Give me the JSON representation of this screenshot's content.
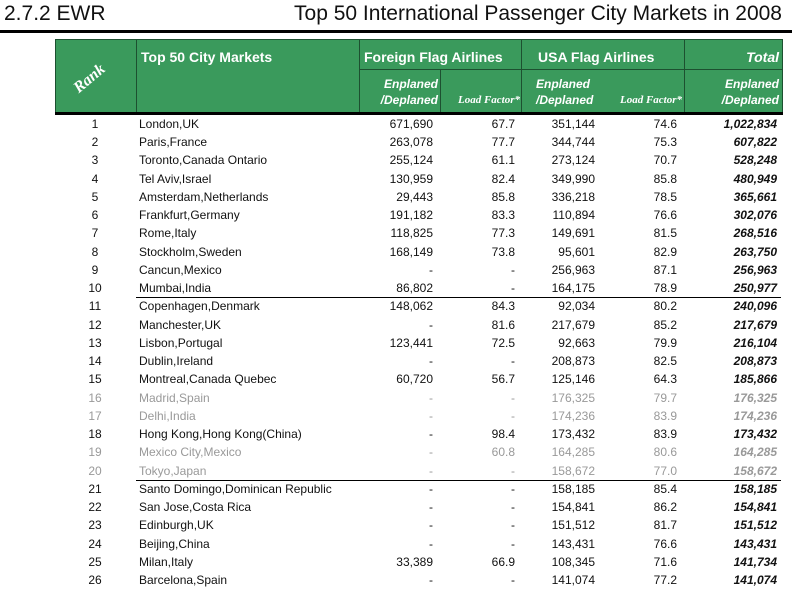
{
  "section": "2.7.2 EWR",
  "title": "Top 50 International Passenger City Markets in 2008",
  "header": {
    "rank": "Rank",
    "city": "Top 50 City Markets",
    "foreign": "Foreign Flag Airlines",
    "usa": "USA Flag Airlines",
    "total": "Total",
    "enplaned": "Enplaned",
    "deplaned": "/Deplaned",
    "load_factor": "Load Factor*",
    "header_color": "#3a9a5c"
  },
  "rows": [
    [
      "1",
      "London,UK",
      "671,690",
      "67.7",
      "351,144",
      "74.6",
      "1,022,834"
    ],
    [
      "2",
      "Paris,France",
      "263,078",
      "77.7",
      "344,744",
      "75.3",
      "607,822"
    ],
    [
      "3",
      "Toronto,Canada Ontario",
      "255,124",
      "61.1",
      "273,124",
      "70.7",
      "528,248"
    ],
    [
      "4",
      "Tel Aviv,Israel",
      "130,959",
      "82.4",
      "349,990",
      "85.8",
      "480,949"
    ],
    [
      "5",
      "Amsterdam,Netherlands",
      "29,443",
      "85.8",
      "336,218",
      "78.5",
      "365,661"
    ],
    [
      "6",
      "Frankfurt,Germany",
      "191,182",
      "83.3",
      "110,894",
      "76.6",
      "302,076"
    ],
    [
      "7",
      "Rome,Italy",
      "118,825",
      "77.3",
      "149,691",
      "81.5",
      "268,516"
    ],
    [
      "8",
      "Stockholm,Sweden",
      "168,149",
      "73.8",
      "95,601",
      "82.9",
      "263,750"
    ],
    [
      "9",
      "Cancun,Mexico",
      "-",
      "-",
      "256,963",
      "87.1",
      "256,963"
    ],
    [
      "10",
      "Mumbai,India",
      "86,802",
      "-",
      "164,175",
      "78.9",
      "250,977"
    ],
    [
      "11",
      "Copenhagen,Denmark",
      "148,062",
      "84.3",
      "92,034",
      "80.2",
      "240,096"
    ],
    [
      "12",
      "Manchester,UK",
      "-",
      "81.6",
      "217,679",
      "85.2",
      "217,679"
    ],
    [
      "13",
      "Lisbon,Portugal",
      "123,441",
      "72.5",
      "92,663",
      "79.9",
      "216,104"
    ],
    [
      "14",
      "Dublin,Ireland",
      "-",
      "-",
      "208,873",
      "82.5",
      "208,873"
    ],
    [
      "15",
      "Montreal,Canada Quebec",
      "60,720",
      "56.7",
      "125,146",
      "64.3",
      "185,866"
    ],
    [
      "16",
      "Madrid,Spain",
      "-",
      "-",
      "176,325",
      "79.7",
      "176,325"
    ],
    [
      "17",
      "Delhi,India",
      "-",
      "-",
      "174,236",
      "83.9",
      "174,236"
    ],
    [
      "18",
      "Hong Kong,Hong Kong(China)",
      "-",
      "98.4",
      "173,432",
      "83.9",
      "173,432"
    ],
    [
      "19",
      "Mexico City,Mexico",
      "-",
      "60.8",
      "164,285",
      "80.6",
      "164,285"
    ],
    [
      "20",
      "Tokyo,Japan",
      "-",
      "-",
      "158,672",
      "77.0",
      "158,672"
    ],
    [
      "21",
      "Santo Domingo,Dominican Republic",
      "-",
      "-",
      "158,185",
      "85.4",
      "158,185"
    ],
    [
      "22",
      "San Jose,Costa Rica",
      "-",
      "-",
      "154,841",
      "86.2",
      "154,841"
    ],
    [
      "23",
      "Edinburgh,UK",
      "-",
      "-",
      "151,512",
      "81.7",
      "151,512"
    ],
    [
      "24",
      "Beijing,China",
      "-",
      "-",
      "143,431",
      "76.6",
      "143,431"
    ],
    [
      "25",
      "Milan,Italy",
      "33,389",
      "66.9",
      "108,345",
      "71.6",
      "141,734"
    ],
    [
      "26",
      "Barcelona,Spain",
      "-",
      "-",
      "141,074",
      "77.2",
      "141,074"
    ]
  ]
}
